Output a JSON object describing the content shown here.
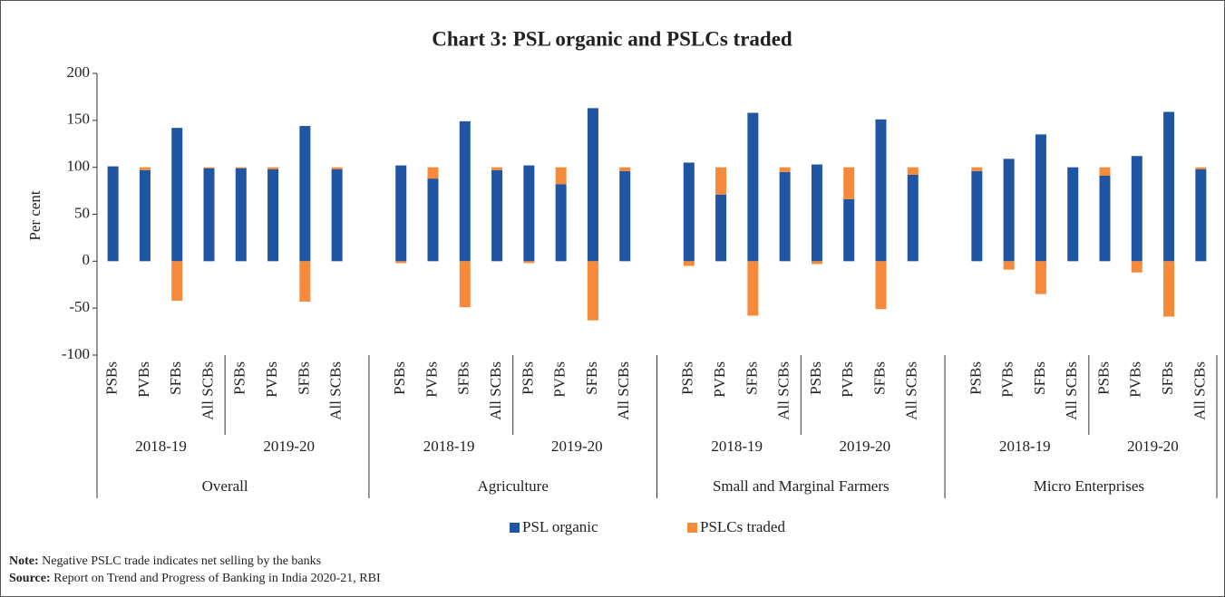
{
  "chart_data": {
    "type": "bar",
    "stacked": true,
    "title": "Chart 3: PSL organic and PSLCs traded",
    "y_label": "Per cent",
    "categories": [
      "PSBs",
      "PVBs",
      "SFBs",
      "All SCBs",
      "PSBs",
      "PVBs",
      "SFBs",
      "All SCBs",
      "PSBs",
      "PVBs",
      "SFBs",
      "All SCBs",
      "PSBs",
      "PVBs",
      "SFBs",
      "All SCBs",
      "PSBs",
      "PVBs",
      "SFBs",
      "All SCBs",
      "PSBs",
      "PVBs",
      "SFBs",
      "All SCBs",
      "PSBs",
      "PVBs",
      "SFBs",
      "All SCBs",
      "PSBs",
      "PVBs",
      "SFBs",
      "All SCBs"
    ],
    "year_groups": [
      "2018-19",
      "2019-20",
      "2018-19",
      "2019-20",
      "2018-19",
      "2019-20",
      "2018-19",
      "2019-20"
    ],
    "sector_groups": [
      "Overall",
      "Agriculture",
      "Small and Marginal Farmers",
      "Micro Enterprises"
    ],
    "series": [
      {
        "name": "PSL organic",
        "color": "#1f55a3",
        "values": [
          101,
          97,
          142,
          99,
          99,
          98,
          144,
          98,
          102,
          88,
          149,
          97,
          102,
          82,
          163,
          96,
          105,
          71,
          158,
          95,
          103,
          66,
          151,
          92,
          96,
          109,
          135,
          100,
          91,
          112,
          159,
          98
        ]
      },
      {
        "name": "PSLCs traded",
        "color": "#f58a3a",
        "values": [
          0,
          3,
          -42,
          1,
          1,
          2,
          -43,
          2,
          -2,
          12,
          -49,
          3,
          -2,
          18,
          -63,
          4,
          -5,
          29,
          -58,
          5,
          -3,
          34,
          -51,
          8,
          4,
          -9,
          -35,
          0,
          9,
          -12,
          -59,
          2
        ]
      }
    ],
    "ylim": [
      -100,
      200
    ],
    "yticks": [
      -100,
      -50,
      0,
      50,
      100,
      150,
      200
    ],
    "legend": "bottom",
    "note_label": "Note:",
    "note": "Negative PSLC trade indicates net selling by the banks",
    "source_label": "Source:",
    "source": "Report on Trend and Progress of Banking in India 2020-21, RBI"
  }
}
